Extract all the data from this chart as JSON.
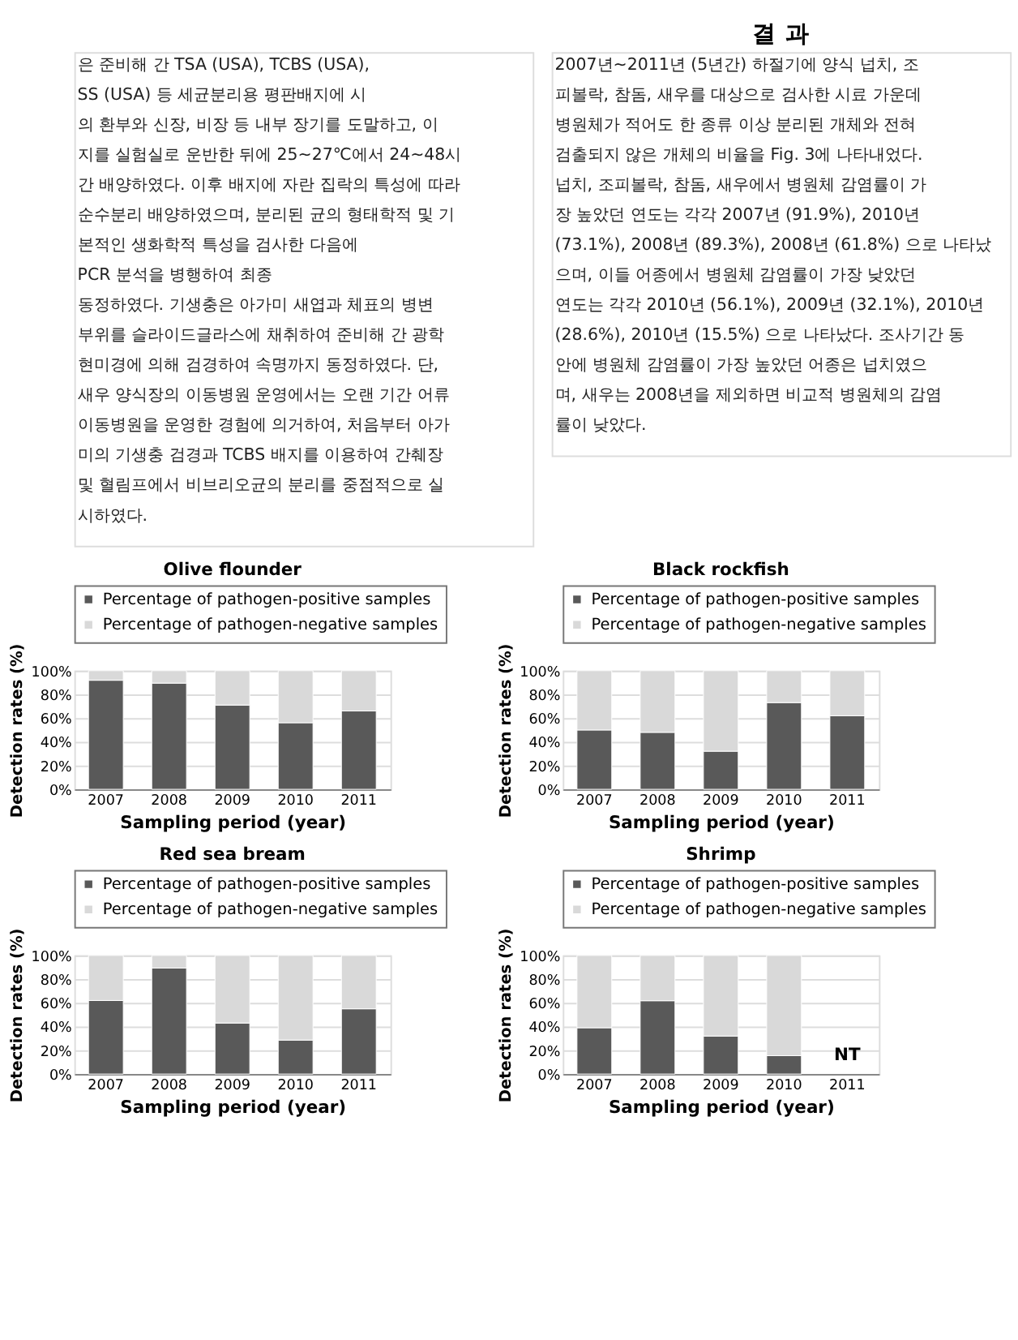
{
  "chart_data": [
    {
      "type": "other",
      "annotations": [
        "은 준비해 간 TSA (USA), TCBS (USA),",
        "SS (USA) 등 세균분리용 평판배지에 시",
        "의 환부와 신장, 비장 등 내부 장기를 도말하고, 이",
        "지를 실험실로 운반한 뒤에 25~27℃에서 24~48시",
        "간 배양하였다. 이후 배지에 자란 집락의 특성에 따라",
        "순수분리 배양하였으며, 분리된 균의 형태학적 및 기",
        "본적인 생화학적 특성을 검사한 다음에",
        "PCR 분석을 병행하여 최종",
        "동정하였다. 기생충은 아가미 새엽과 체표의 병변",
        "부위를 슬라이드글라스에 채취하여 준비해 간 광학",
        "현미경에 의해 검경하여 속명까지 동정하였다. 단,",
        "새우 양식장의 이동병원 운영에서는 오랜 기간 어류",
        "이동병원을 운영한 경험에 의거하여, 처음부터 아가",
        "미의 기생충 검경과 TCBS 배지를 이용하여 간췌장",
        "및 혈림프에서 비브리오균의 분리를 중점적으로 실",
        "시하였다."
      ]
    },
    {
      "type": "other",
      "title": "결 과",
      "annotations": [
        "2007년~2011년 (5년간) 하절기에 양식 넙치, 조",
        "피볼락, 참돔, 새우를 대상으로 검사한 시료 가운데",
        "병원체가 적어도 한 종류 이상 분리된 개체와 전혀",
        "검출되지 않은 개체의 비율을 Fig. 3에 나타내었다.",
        "넙치, 조피볼락, 참돔, 새우에서 병원체 감염률이 가",
        "장 높았던 연도는 각각 2007년 (91.9%), 2010년",
        "(73.1%), 2008년 (89.3%), 2008년 (61.8%) 으로 나타났",
        "으며, 이들 어종에서 병원체 감염률이 가장 낮았던",
        "연도는 각각 2010년 (56.1%), 2009년 (32.1%), 2010년",
        "(28.6%), 2010년 (15.5%) 으로 나타났다. 조사기간 동",
        "안에 병원체 감염률이 가장 높았던 어종은 넙치였으",
        "며, 새우는 2008년을 제외하면 비교적 병원체의 감염",
        "률이 낮았다."
      ]
    },
    {
      "type": "bar",
      "stacked": true,
      "title": "Olive flounder",
      "xlabel": "Sampling period (year)",
      "ylabel": "Detection rates (%)",
      "categories": [
        "2007",
        "2008",
        "2009",
        "2010",
        "2011"
      ],
      "ylim": [
        0,
        100
      ],
      "yticks": [
        {
          "value": 0,
          "label": "0%"
        },
        {
          "value": 20,
          "label": "20%"
        },
        {
          "value": 40,
          "label": "40%"
        },
        {
          "value": 60,
          "label": "60%"
        },
        {
          "value": 80,
          "label": "80%"
        },
        {
          "value": 100,
          "label": "100%"
        }
      ],
      "grid": "y",
      "legend": "top",
      "series": [
        {
          "name": "Percentage of pathogen-positive samples",
          "color": "#595959",
          "values": [
            91.9,
            89.5,
            71,
            56.1,
            66
          ]
        },
        {
          "name": "Percentage of pathogen-negative samples",
          "color": "#d9d9d9",
          "values": [
            8.1,
            10.5,
            29,
            43.9,
            34
          ]
        }
      ]
    },
    {
      "type": "bar",
      "stacked": true,
      "title": "Black rockfish",
      "xlabel": "Sampling period (year)",
      "ylabel": "Detection rates (%)",
      "categories": [
        "2007",
        "2008",
        "2009",
        "2010",
        "2011"
      ],
      "ylim": [
        0,
        100
      ],
      "yticks": [
        {
          "value": 0,
          "label": "0%"
        },
        {
          "value": 20,
          "label": "20%"
        },
        {
          "value": 40,
          "label": "40%"
        },
        {
          "value": 60,
          "label": "60%"
        },
        {
          "value": 80,
          "label": "80%"
        },
        {
          "value": 100,
          "label": "100%"
        }
      ],
      "grid": "y",
      "legend": "top",
      "series": [
        {
          "name": "Percentage of pathogen-positive samples",
          "color": "#595959",
          "values": [
            50,
            48,
            32.1,
            73.1,
            62
          ]
        },
        {
          "name": "Percentage of pathogen-negative samples",
          "color": "#d9d9d9",
          "values": [
            50,
            52,
            67.9,
            26.9,
            38
          ]
        }
      ]
    },
    {
      "type": "bar",
      "stacked": true,
      "title": "Red sea bream",
      "xlabel": "Sampling period (year)",
      "ylabel": "Detection rates (%)",
      "categories": [
        "2007",
        "2008",
        "2009",
        "2010",
        "2011"
      ],
      "ylim": [
        0,
        100
      ],
      "yticks": [
        {
          "value": 0,
          "label": "0%"
        },
        {
          "value": 20,
          "label": "20%"
        },
        {
          "value": 40,
          "label": "40%"
        },
        {
          "value": 60,
          "label": "60%"
        },
        {
          "value": 80,
          "label": "80%"
        },
        {
          "value": 100,
          "label": "100%"
        }
      ],
      "grid": "y",
      "legend": "top",
      "series": [
        {
          "name": "Percentage of pathogen-positive samples",
          "color": "#595959",
          "values": [
            62,
            89.3,
            43,
            28.6,
            55
          ]
        },
        {
          "name": "Percentage of pathogen-negative samples",
          "color": "#d9d9d9",
          "values": [
            38,
            10.7,
            57,
            71.4,
            45
          ]
        }
      ]
    },
    {
      "type": "bar",
      "stacked": true,
      "title": "Shrimp",
      "xlabel": "Sampling period (year)",
      "ylabel": "Detection rates (%)",
      "categories": [
        "2007",
        "2008",
        "2009",
        "2010",
        "2011"
      ],
      "ylim": [
        0,
        100
      ],
      "yticks": [
        {
          "value": 0,
          "label": "0%"
        },
        {
          "value": 20,
          "label": "20%"
        },
        {
          "value": 40,
          "label": "40%"
        },
        {
          "value": 60,
          "label": "60%"
        },
        {
          "value": 80,
          "label": "80%"
        },
        {
          "value": 100,
          "label": "100%"
        }
      ],
      "grid": "y",
      "legend": "top",
      "annotations": [
        "NT"
      ],
      "series": [
        {
          "name": "Percentage of pathogen-positive samples",
          "color": "#595959",
          "values": [
            39,
            61.8,
            32,
            15.5,
            null
          ]
        },
        {
          "name": "Percentage of pathogen-negative samples",
          "color": "#d9d9d9",
          "values": [
            61,
            38.2,
            68,
            84.5,
            null
          ]
        }
      ]
    }
  ]
}
